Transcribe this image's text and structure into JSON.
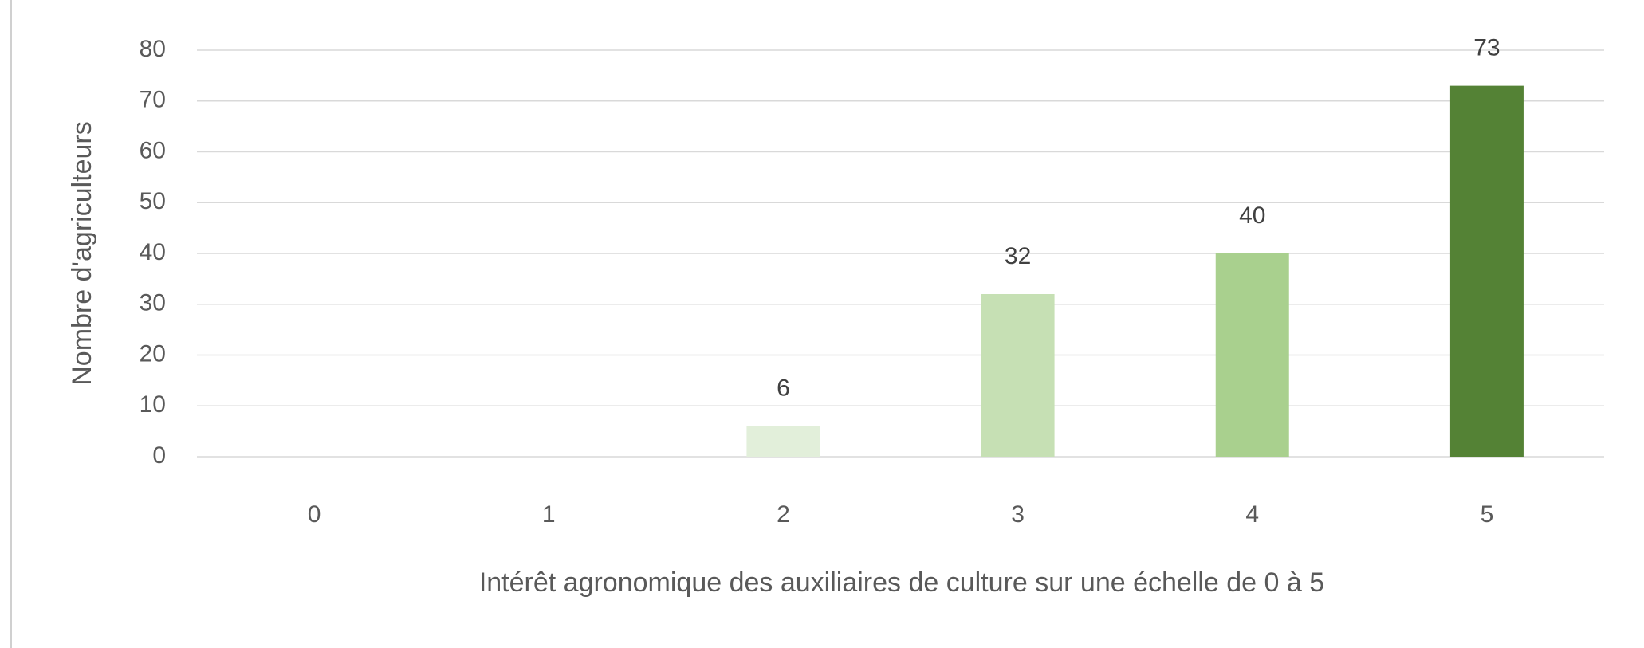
{
  "chart_data": {
    "type": "bar",
    "x_label": "Intérêt agronomique des auxiliaires de culture sur une échelle de 0 à 5",
    "y_label": "Nombre d'agriculteurs",
    "categories": [
      "0",
      "1",
      "2",
      "3",
      "4",
      "5"
    ],
    "values": [
      null,
      null,
      6,
      32,
      40,
      73
    ],
    "colors": [
      null,
      null,
      "#e2efda",
      "#c6e0b4",
      "#a9d08e",
      "#548235"
    ],
    "ylim": [
      0,
      80
    ],
    "yticks": [
      0,
      10,
      20,
      30,
      40,
      50,
      60,
      70,
      80
    ],
    "grid": true
  }
}
